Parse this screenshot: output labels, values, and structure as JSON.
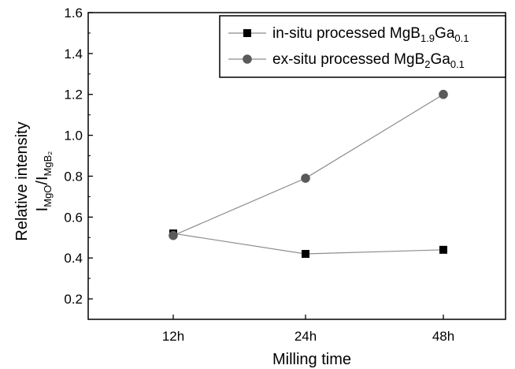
{
  "chart_data": {
    "type": "line",
    "categories": [
      "12h",
      "24h",
      "48h"
    ],
    "xlabel": "Milling time",
    "ylabel": {
      "line1": "Relative intensity",
      "I": "I",
      "sub1": "MgO",
      "slash": "/I",
      "sub2": "MgB₂"
    },
    "ylim": [
      0.1,
      1.6
    ],
    "yticks": [
      "0.2",
      "0.4",
      "0.6",
      "0.8",
      "1.0",
      "1.2",
      "1.4",
      "1.6"
    ],
    "ytick_values": [
      0.2,
      0.4,
      0.6,
      0.8,
      1.0,
      1.2,
      1.4,
      1.6
    ],
    "grid": false,
    "legend_position": "top-right",
    "series": [
      {
        "marker": "square",
        "color": "#000000",
        "line_color": "#8c8c8c",
        "values": [
          0.52,
          0.42,
          0.44
        ],
        "legend": {
          "prefix": "in-situ processed MgB",
          "sub1": "1.9",
          "mid": "Ga",
          "sub2": "0.1"
        }
      },
      {
        "marker": "circle",
        "color": "#5a5a5a",
        "line_color": "#8c8c8c",
        "values": [
          0.51,
          0.79,
          1.2
        ],
        "legend": {
          "prefix": "ex-situ processed MgB",
          "sub1": "2",
          "mid": "Ga",
          "sub2": "0.1"
        }
      }
    ]
  }
}
